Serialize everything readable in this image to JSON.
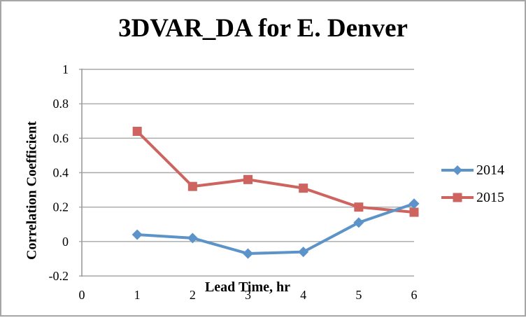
{
  "window": {
    "background": "#FFFFFF",
    "border_color": "#A6A6A6"
  },
  "chart_data": {
    "type": "line",
    "title": "3DVAR_DA for E. Denver",
    "xlabel": "Lead Time, hr",
    "ylabel": "Correlation Coefficient",
    "xlim": [
      0,
      6
    ],
    "ylim": [
      -0.2,
      1
    ],
    "xticks": [
      "0",
      "1",
      "2",
      "3",
      "4",
      "5",
      "6"
    ],
    "yticks": [
      "1",
      "0.8",
      "0.6",
      "0.4",
      "0.2",
      "0",
      "-0.2"
    ],
    "grid": "horizontal",
    "legend_position": "right-middle",
    "x": [
      1,
      2,
      3,
      4,
      5,
      6
    ],
    "series": [
      {
        "name": "2014",
        "color": "#5C93C9",
        "marker": "diamond",
        "values": [
          0.04,
          0.02,
          -0.07,
          -0.06,
          0.11,
          0.22
        ]
      },
      {
        "name": "2015",
        "color": "#CE645F",
        "marker": "square",
        "values": [
          0.64,
          0.32,
          0.36,
          0.31,
          0.2,
          0.17
        ]
      }
    ],
    "gridline_color": "#A8A8A8",
    "axis_color": "#9B9B9B",
    "text_color": "#000000"
  }
}
